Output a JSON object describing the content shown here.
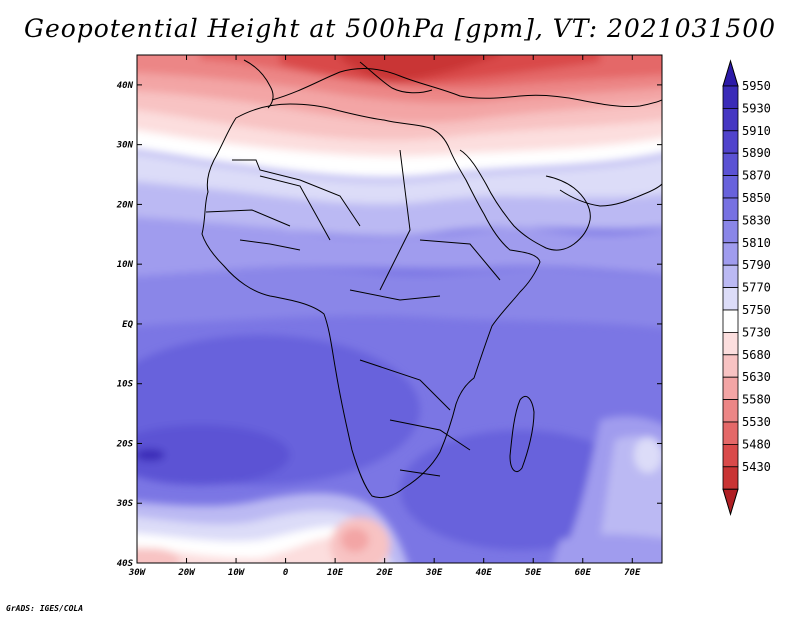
{
  "title": "Geopotential Height at 500hPa [gpm], VT: 2021031500",
  "credit": "GrADS: IGES/COLA",
  "map": {
    "lon_range": [
      -30,
      76
    ],
    "lat_range": [
      -40,
      45
    ],
    "lon_ticks": [
      {
        "lon": -30,
        "label": "30W"
      },
      {
        "lon": -20,
        "label": "20W"
      },
      {
        "lon": -10,
        "label": "10W"
      },
      {
        "lon": 0,
        "label": "0"
      },
      {
        "lon": 10,
        "label": "10E"
      },
      {
        "lon": 20,
        "label": "20E"
      },
      {
        "lon": 30,
        "label": "30E"
      },
      {
        "lon": 40,
        "label": "40E"
      },
      {
        "lon": 50,
        "label": "50E"
      },
      {
        "lon": 60,
        "label": "60E"
      },
      {
        "lon": 70,
        "label": "70E"
      }
    ],
    "lat_ticks": [
      {
        "lat": 40,
        "label": "40N"
      },
      {
        "lat": 30,
        "label": "30N"
      },
      {
        "lat": 20,
        "label": "20N"
      },
      {
        "lat": 10,
        "label": "10N"
      },
      {
        "lat": 0,
        "label": "EQ"
      },
      {
        "lat": -10,
        "label": "10S"
      },
      {
        "lat": -20,
        "label": "20S"
      },
      {
        "lat": -30,
        "label": "30S"
      },
      {
        "lat": -40,
        "label": "40S"
      }
    ]
  },
  "colorbar": {
    "levels": [
      {
        "label": "5950",
        "color": "#3a2bb8"
      },
      {
        "label": "5930",
        "color": "#4536c2"
      },
      {
        "label": "5910",
        "color": "#5043cc"
      },
      {
        "label": "5890",
        "color": "#5b52d4"
      },
      {
        "label": "5870",
        "color": "#6862dc"
      },
      {
        "label": "5850",
        "color": "#7771e2"
      },
      {
        "label": "5830",
        "color": "#8a86e8"
      },
      {
        "label": "5810",
        "color": "#a09cee"
      },
      {
        "label": "5790",
        "color": "#bbb9f3"
      },
      {
        "label": "5770",
        "color": "#dcdcf8"
      },
      {
        "label": "5750",
        "color": "#ffffff"
      },
      {
        "label": "5730",
        "color": "#fcdede"
      },
      {
        "label": "5680",
        "color": "#f8c3c3"
      },
      {
        "label": "5630",
        "color": "#f3a5a5"
      },
      {
        "label": "5580",
        "color": "#ec8686"
      },
      {
        "label": "5530",
        "color": "#e46868"
      },
      {
        "label": "5480",
        "color": "#d94a4a"
      },
      {
        "label": "5430",
        "color": "#c93434"
      }
    ],
    "max_color": "#2c1aa8",
    "min_color": "#b01f24"
  }
}
